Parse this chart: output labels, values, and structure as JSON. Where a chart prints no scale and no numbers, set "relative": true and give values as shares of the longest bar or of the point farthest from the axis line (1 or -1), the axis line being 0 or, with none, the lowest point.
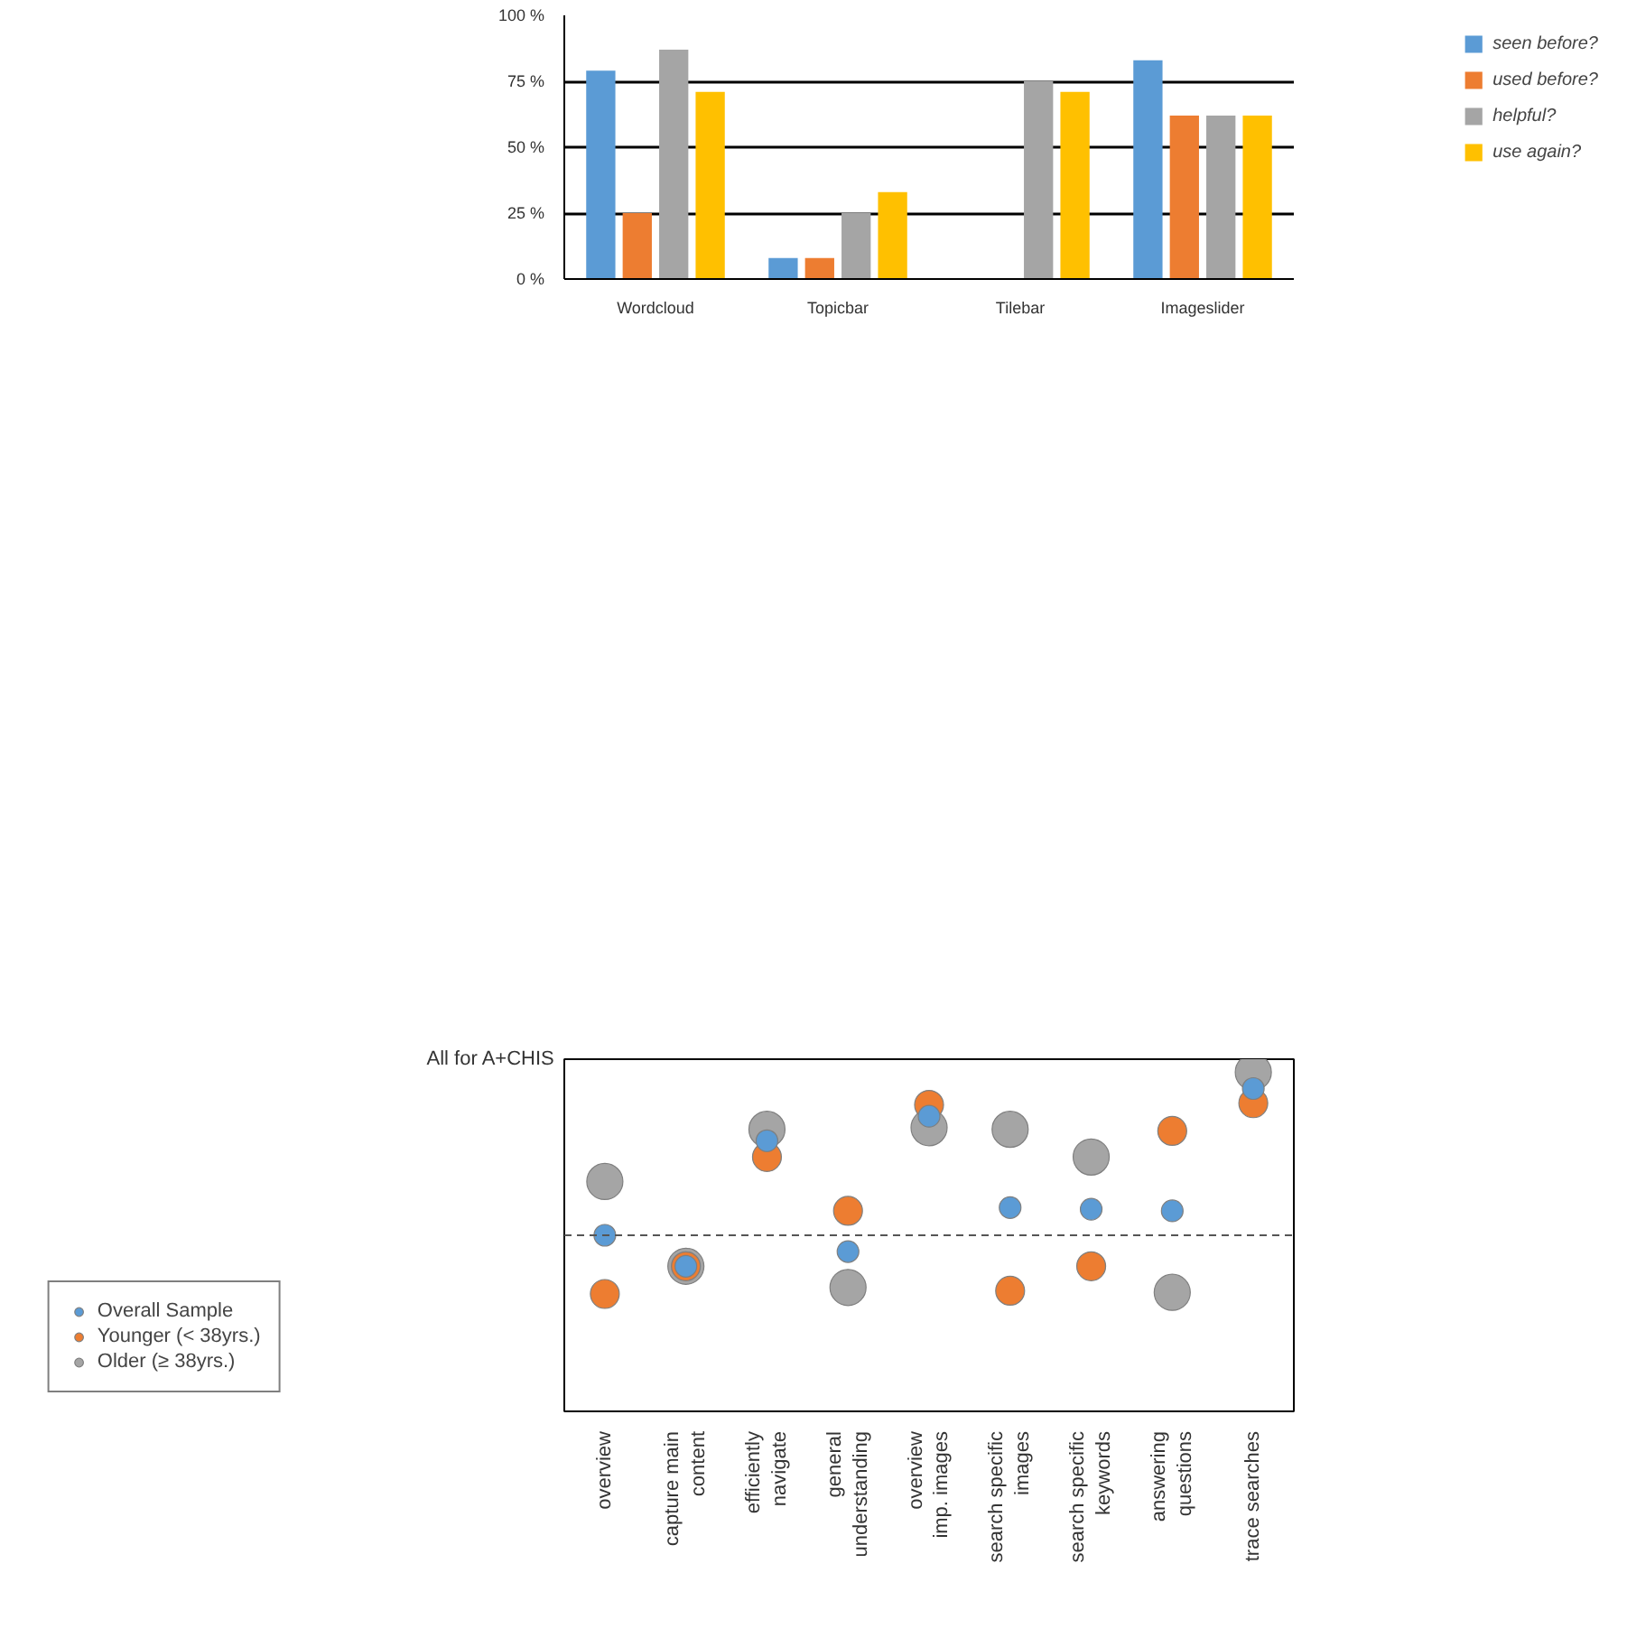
{
  "chart_data": [
    {
      "type": "bar",
      "categories": [
        "Wordcloud",
        "Topicbar",
        "Tilebar",
        "Imageslider"
      ],
      "series": [
        {
          "name": "seen before?",
          "color": "#5b9bd5",
          "values": [
            79,
            8,
            0,
            83
          ]
        },
        {
          "name": "used before?",
          "color": "#ed7d31",
          "values": [
            25,
            8,
            0,
            62
          ]
        },
        {
          "name": "helpful?",
          "color": "#a5a5a5",
          "values": [
            87,
            25,
            75,
            62
          ]
        },
        {
          "name": "use again?",
          "color": "#ffc000",
          "values": [
            71,
            33,
            71,
            62
          ]
        }
      ],
      "ylim": [
        0,
        100
      ],
      "yticks": [
        {
          "value": 0,
          "label": "0 %"
        },
        {
          "value": 25,
          "label": "25 %"
        },
        {
          "value": 50,
          "label": "50 %"
        },
        {
          "value": 75,
          "label": "75 %"
        },
        {
          "value": 100,
          "label": "100 %"
        }
      ],
      "grid": "y",
      "legend": "right"
    },
    {
      "type": "scatter",
      "categories": [
        "overview",
        "capture main\ncontent",
        "efficiently\nnavigate",
        "general\nunderstanding",
        "overview\nimp. images",
        "search specific\nimages",
        "search specific\nkeywords",
        "answering\nquestions",
        "trace searches"
      ],
      "series": [
        {
          "name": "Older (≥ 38yrs.)",
          "color": "#a5a5a5",
          "values": [
            0.33,
            -0.19,
            0.65,
            -0.32,
            0.66,
            0.65,
            0.48,
            -0.35,
            1.0
          ]
        },
        {
          "name": "Younger (< 38yrs.)",
          "color": "#ed7d31",
          "values": [
            -0.36,
            -0.19,
            0.48,
            0.15,
            0.8,
            -0.34,
            -0.19,
            0.64,
            0.81
          ]
        },
        {
          "name": "Overall Sample",
          "color": "#5b9bd5",
          "values": [
            0.0,
            -0.19,
            0.58,
            -0.1,
            0.73,
            0.17,
            0.16,
            0.15,
            0.9
          ]
        }
      ],
      "relative": true,
      "annotations": [
        "All for A+CHIS"
      ],
      "ref_lines": [
        {
          "axis": "y",
          "value": 0,
          "color": "#555555",
          "line_style": "dashed"
        }
      ],
      "marker": "circle",
      "legend": "bottom left"
    }
  ]
}
